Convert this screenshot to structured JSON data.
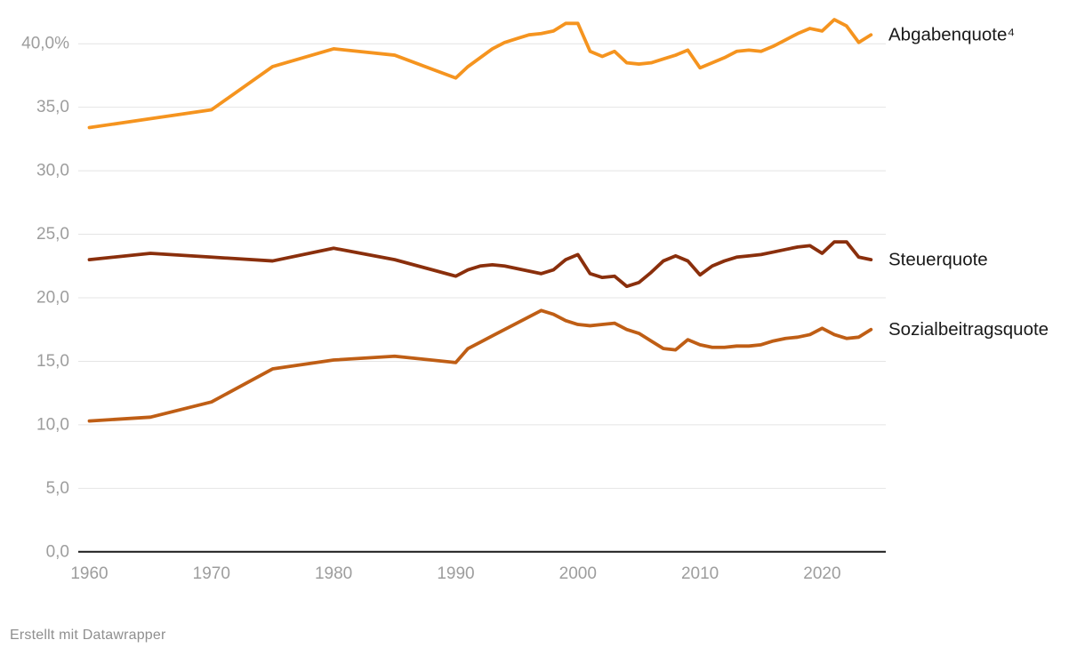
{
  "chart_data": {
    "type": "line",
    "title": "",
    "footer": "Erstellt mit Datawrapper",
    "grid": true,
    "legend_position": "right-of-line-ends",
    "colors": {
      "abgabenquote": "#f5941f",
      "steuerquote": "#8a2f0c",
      "sozialbeitragsquote": "#bf5e15",
      "gridline": "#e4e4e4",
      "axis_line": "#1a1a1a",
      "tick_label": "#9d9d9d",
      "series_label": "#1a1a1a",
      "footer_text": "#8f8f8f"
    },
    "y_axis": {
      "ylim": [
        0,
        43.5
      ],
      "ticks": [
        {
          "value": 0,
          "label": "0,0"
        },
        {
          "value": 5,
          "label": "5,0"
        },
        {
          "value": 10,
          "label": "10,0"
        },
        {
          "value": 15,
          "label": "15,0"
        },
        {
          "value": 20,
          "label": "20,0"
        },
        {
          "value": 25,
          "label": "25,0"
        },
        {
          "value": 30,
          "label": "30,0"
        },
        {
          "value": 35,
          "label": "35,0"
        },
        {
          "value": 40,
          "label": "40,0%"
        }
      ]
    },
    "x_axis": {
      "xlim": [
        1959,
        2025.5
      ],
      "ticks": [
        {
          "year": 1960,
          "label": "1960"
        },
        {
          "year": 1970,
          "label": "1970"
        },
        {
          "year": 1980,
          "label": "1980"
        },
        {
          "year": 1990,
          "label": "1990"
        },
        {
          "year": 2000,
          "label": "2000"
        },
        {
          "year": 2010,
          "label": "2010"
        },
        {
          "year": 2020,
          "label": "2020"
        }
      ]
    },
    "x": [
      1960,
      1965,
      1970,
      1975,
      1980,
      1985,
      1990,
      1991,
      1992,
      1993,
      1994,
      1995,
      1996,
      1997,
      1998,
      1999,
      2000,
      2001,
      2002,
      2003,
      2004,
      2005,
      2006,
      2007,
      2008,
      2009,
      2010,
      2011,
      2012,
      2013,
      2014,
      2015,
      2016,
      2017,
      2018,
      2019,
      2020,
      2021,
      2022,
      2023,
      2024
    ],
    "series": [
      {
        "name": "Abgabenquote⁴",
        "key": "abgabenquote",
        "values": [
          33.4,
          34.1,
          34.8,
          38.2,
          39.6,
          39.1,
          37.3,
          38.2,
          38.9,
          39.6,
          40.1,
          40.4,
          40.7,
          40.8,
          41.0,
          41.6,
          41.6,
          39.4,
          39.0,
          39.4,
          38.5,
          38.4,
          38.5,
          38.8,
          39.1,
          39.5,
          38.1,
          38.5,
          38.9,
          39.4,
          39.5,
          39.4,
          39.8,
          40.3,
          40.8,
          41.2,
          41.0,
          41.9,
          41.4,
          40.1,
          40.7
        ]
      },
      {
        "name": "Steuerquote",
        "key": "steuerquote",
        "values": [
          23.0,
          23.5,
          23.2,
          22.9,
          23.9,
          23.0,
          21.7,
          22.2,
          22.5,
          22.6,
          22.5,
          22.3,
          22.1,
          21.9,
          22.2,
          23.0,
          23.4,
          21.9,
          21.6,
          21.7,
          20.9,
          21.2,
          22.0,
          22.9,
          23.3,
          22.9,
          21.8,
          22.5,
          22.9,
          23.2,
          23.3,
          23.4,
          23.6,
          23.8,
          24.0,
          24.1,
          23.5,
          24.4,
          24.4,
          23.2,
          23.0
        ]
      },
      {
        "name": "Sozialbeitragsquote",
        "key": "sozialbeitragsquote",
        "values": [
          10.3,
          10.6,
          11.8,
          14.4,
          15.1,
          15.4,
          14.9,
          16.0,
          16.5,
          17.0,
          17.5,
          18.0,
          18.5,
          19.0,
          18.7,
          18.2,
          17.9,
          17.8,
          17.9,
          18.0,
          17.5,
          17.2,
          16.6,
          16.0,
          15.9,
          16.7,
          16.3,
          16.1,
          16.1,
          16.2,
          16.2,
          16.3,
          16.6,
          16.8,
          16.9,
          17.1,
          17.6,
          17.1,
          16.8,
          16.9,
          17.5
        ]
      }
    ]
  }
}
